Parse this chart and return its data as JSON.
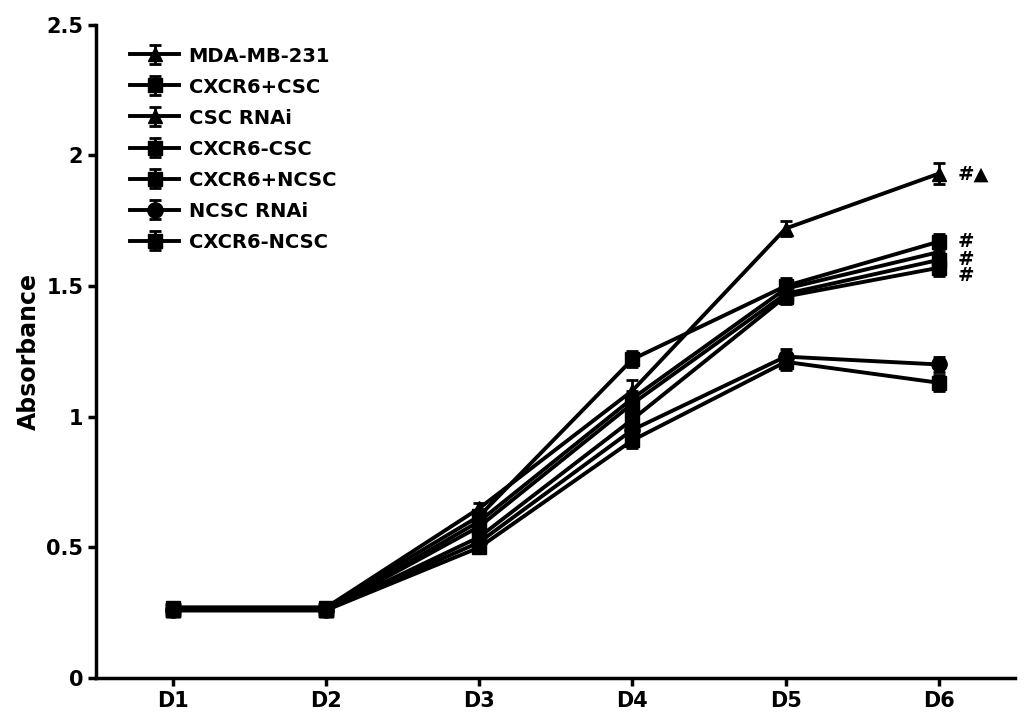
{
  "x_labels": [
    "D1",
    "D2",
    "D3",
    "D4",
    "D5",
    "D6"
  ],
  "x_values": [
    1,
    2,
    3,
    4,
    5,
    6
  ],
  "series": [
    {
      "label": "MDA-MB-231",
      "values": [
        0.27,
        0.27,
        0.65,
        1.1,
        1.72,
        1.93
      ],
      "errors": [
        0.01,
        0.01,
        0.02,
        0.04,
        0.03,
        0.04
      ],
      "marker": "^",
      "markersize": 10,
      "linewidth": 2.8,
      "color": "#000000"
    },
    {
      "label": "CXCR6+CSC",
      "values": [
        0.27,
        0.27,
        0.62,
        1.22,
        1.5,
        1.67
      ],
      "errors": [
        0.01,
        0.01,
        0.02,
        0.03,
        0.03,
        0.03
      ],
      "marker": "s",
      "markersize": 10,
      "linewidth": 2.8,
      "color": "#000000"
    },
    {
      "label": "CSC RNAi",
      "values": [
        0.26,
        0.26,
        0.6,
        1.07,
        1.49,
        1.63
      ],
      "errors": [
        0.01,
        0.01,
        0.02,
        0.03,
        0.03,
        0.03
      ],
      "marker": "^",
      "markersize": 10,
      "linewidth": 2.8,
      "color": "#000000"
    },
    {
      "label": "CXCR6-CSC",
      "values": [
        0.26,
        0.26,
        0.58,
        1.05,
        1.47,
        1.6
      ],
      "errors": [
        0.01,
        0.01,
        0.02,
        0.03,
        0.03,
        0.03
      ],
      "marker": "s",
      "markersize": 10,
      "linewidth": 2.8,
      "color": "#000000"
    },
    {
      "label": "CXCR6+NCSC",
      "values": [
        0.26,
        0.26,
        0.54,
        0.99,
        1.46,
        1.57
      ],
      "errors": [
        0.01,
        0.01,
        0.02,
        0.03,
        0.03,
        0.03
      ],
      "marker": "s",
      "markersize": 10,
      "linewidth": 2.8,
      "color": "#000000"
    },
    {
      "label": "NCSC RNAi",
      "values": [
        0.26,
        0.26,
        0.52,
        0.95,
        1.23,
        1.2
      ],
      "errors": [
        0.01,
        0.01,
        0.02,
        0.03,
        0.03,
        0.03
      ],
      "marker": "o",
      "markersize": 11,
      "linewidth": 2.8,
      "color": "#000000"
    },
    {
      "label": "CXCR6-NCSC",
      "values": [
        0.26,
        0.26,
        0.5,
        0.91,
        1.21,
        1.13
      ],
      "errors": [
        0.01,
        0.01,
        0.02,
        0.03,
        0.03,
        0.03
      ],
      "marker": "s",
      "markersize": 10,
      "linewidth": 2.8,
      "color": "#000000"
    }
  ],
  "ylabel": "Absorbance",
  "ylim": [
    0,
    2.5
  ],
  "yticks": [
    0,
    0.5,
    1,
    1.5,
    2,
    2.5
  ],
  "ytick_labels": [
    "0",
    "0.5",
    "1",
    "1.5",
    "2",
    "2.5"
  ],
  "background_color": "#ffffff",
  "legend_fontsize": 14,
  "axis_fontsize": 17,
  "tick_fontsize": 15
}
